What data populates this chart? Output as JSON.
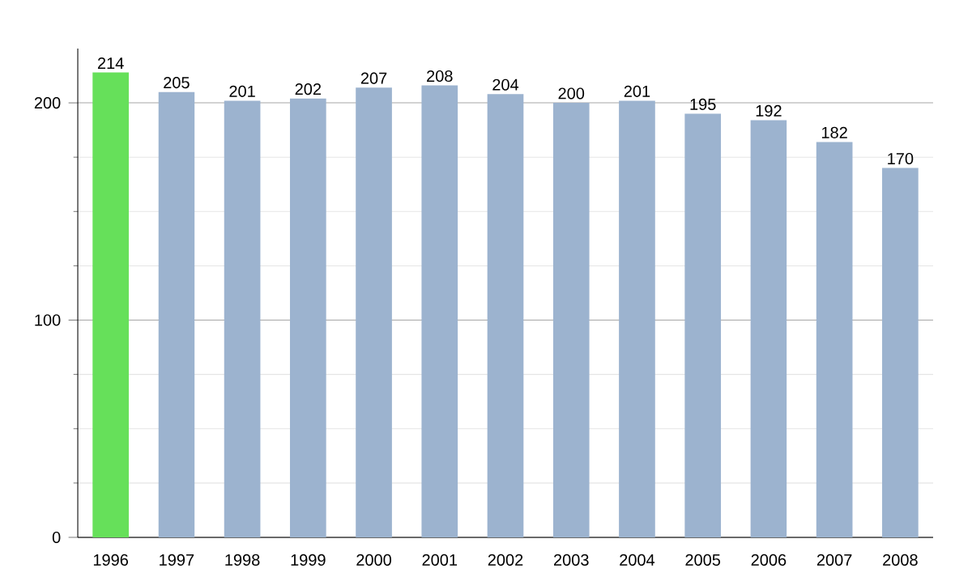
{
  "chart_data": {
    "type": "bar",
    "categories": [
      "1996",
      "1997",
      "1998",
      "1999",
      "2000",
      "2001",
      "2002",
      "2003",
      "2004",
      "2005",
      "2006",
      "2007",
      "2008"
    ],
    "values": [
      214,
      205,
      201,
      202,
      207,
      208,
      204,
      200,
      201,
      195,
      192,
      182,
      170
    ],
    "colors": [
      "#66e05a",
      "#9cb3cf",
      "#9cb3cf",
      "#9cb3cf",
      "#9cb3cf",
      "#9cb3cf",
      "#9cb3cf",
      "#9cb3cf",
      "#9cb3cf",
      "#9cb3cf",
      "#9cb3cf",
      "#9cb3cf",
      "#9cb3cf"
    ],
    "ylim": [
      0,
      225
    ],
    "yticks": [
      0,
      100,
      200
    ],
    "grid": "y",
    "data_labels": true
  }
}
